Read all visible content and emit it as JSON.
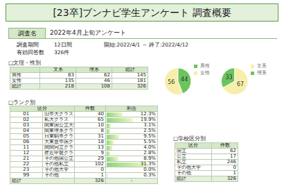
{
  "header": {
    "title": "[23卒]ブンナビ学生アンケート 調査概要"
  },
  "survey": {
    "name_label": "調査名",
    "name": "2022年4月上旬アンケート",
    "period_label": "調査期間",
    "period": "12日間",
    "dates": "開始:2022/4/1 ～ 終了:2022/4/12",
    "responses_label": "有効回答数",
    "responses": "326件"
  },
  "gender_table": {
    "title": "□文理・性別",
    "columns": [
      "文系",
      "理系",
      "総計"
    ],
    "rows": [
      {
        "label": "男性",
        "values": [
          83,
          62,
          145
        ]
      },
      {
        "label": "女性",
        "values": [
          135,
          46,
          181
        ]
      }
    ],
    "total": {
      "label": "総計",
      "values": [
        218,
        108,
        326
      ]
    }
  },
  "chart_data": [
    {
      "type": "pie",
      "categories": [
        "男性",
        "女性"
      ],
      "values": [
        44,
        56
      ],
      "colors": [
        "#6cc45c",
        "#f6eeaa"
      ],
      "legend": "top-right",
      "data_labels": true
    },
    {
      "type": "pie",
      "categories": [
        "文系",
        "理系"
      ],
      "values": [
        67,
        33
      ],
      "colors": [
        "#f6eeaa",
        "#6cc45c"
      ],
      "legend": "top-right",
      "data_labels": true
    }
  ],
  "rank_table": {
    "title": "□ランク別",
    "columns": [
      "区分",
      "件数",
      "割合"
    ],
    "rows": [
      {
        "code": "01",
        "name": "旧帝大クラス",
        "count": 40,
        "share": 12.3,
        "share_label": "12.3%"
      },
      {
        "code": "02",
        "name": "私大クラス",
        "count": 65,
        "share": 19.9,
        "share_label": "19.9%"
      },
      {
        "code": "03",
        "name": "関東国公立大学",
        "count": 10,
        "share": 3.1,
        "share_label": "3.1%"
      },
      {
        "code": "04",
        "name": "関東理系クラス",
        "count": 8,
        "share": 2.5,
        "share_label": "2.5%"
      },
      {
        "code": "05",
        "name": "日東駒専クラス",
        "count": 31,
        "share": 9.5,
        "share_label": "9.5%"
      },
      {
        "code": "06",
        "name": "大東亜帝国クラス",
        "count": 18,
        "share": 5.5,
        "share_label": "5.5%"
      },
      {
        "code": "11",
        "name": "関関同立クラス",
        "count": 13,
        "share": 4.0,
        "share_label": "4.0%"
      },
      {
        "code": "12",
        "name": "産近甲龍クラス",
        "count": 9,
        "share": 2.8,
        "share_label": "2.8%"
      },
      {
        "code": "21",
        "name": "その他国公立",
        "count": 29,
        "share": 8.9,
        "share_label": "8.9%"
      },
      {
        "code": "22",
        "name": "その他私立",
        "count": 102,
        "share": 31.3,
        "share_label": "31.3%"
      },
      {
        "code": "23",
        "name": "その他大学",
        "count": 0,
        "share": 0.0,
        "share_label": "0.0%"
      },
      {
        "code": "99",
        "name": "その他",
        "count": 1,
        "share": 0.3,
        "share_label": "0.3%"
      }
    ],
    "total": {
      "name": "総計",
      "count": 326,
      "share_label": "-"
    }
  },
  "school_table": {
    "title": "□学校区分別",
    "columns": [
      "区分",
      "件数"
    ],
    "rows": [
      {
        "name": "国立",
        "count": 62
      },
      {
        "name": "公立",
        "count": 17
      },
      {
        "name": "私立",
        "count": 246
      },
      {
        "name": "その他大学",
        "count": 0
      },
      {
        "name": "その他",
        "count": 1
      }
    ],
    "total": {
      "name": "総計",
      "count": 326
    }
  }
}
